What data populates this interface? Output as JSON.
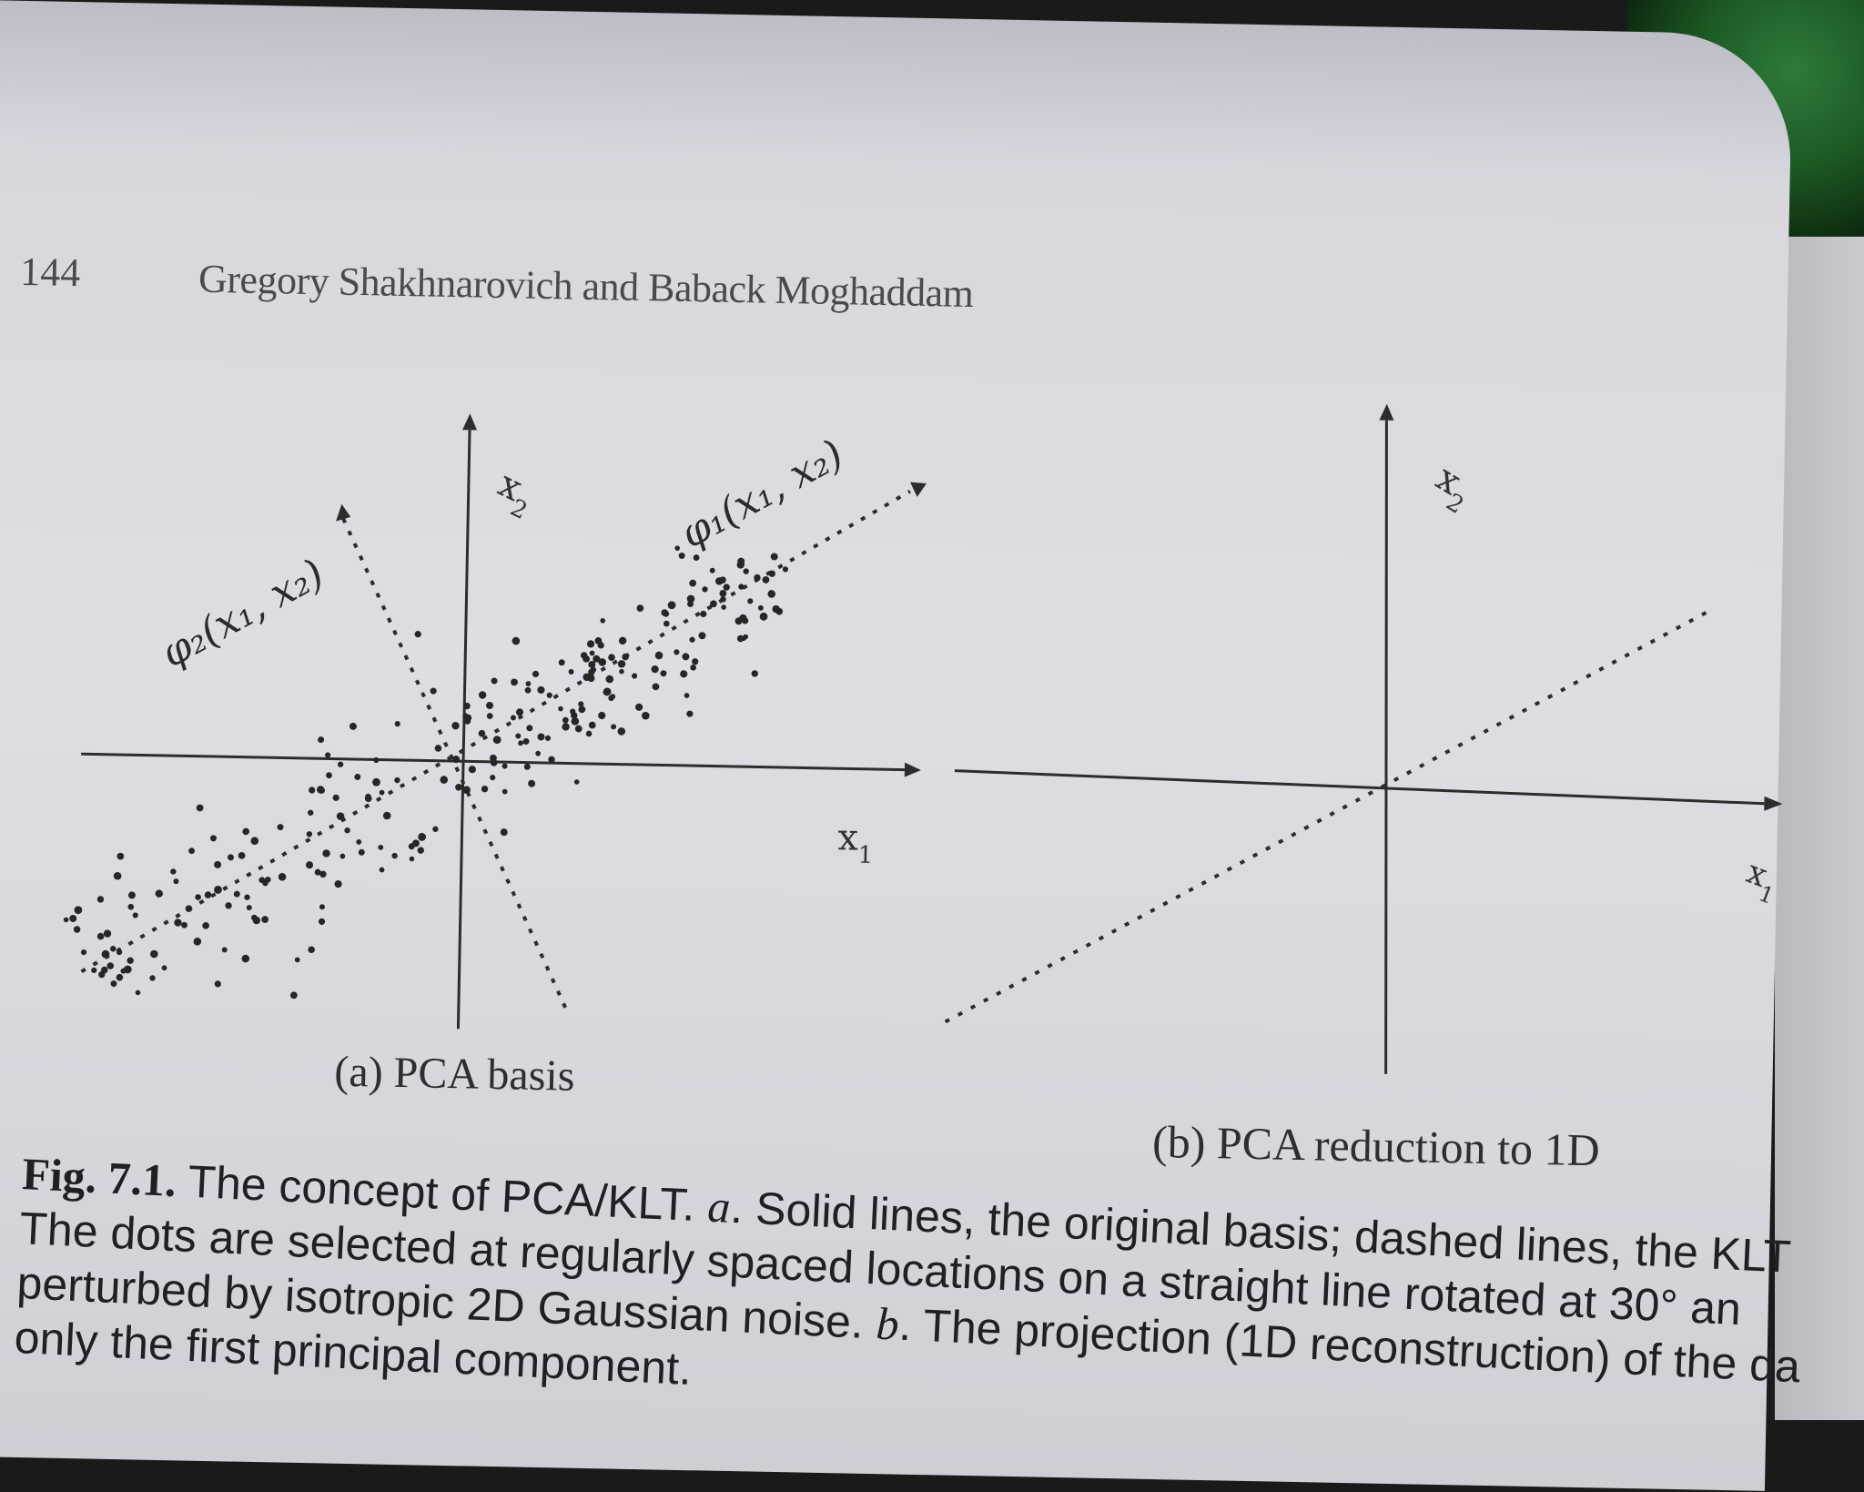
{
  "header": {
    "page_number": "144",
    "running_head": "Gregory Shakhnarovich and Baback Moghaddam"
  },
  "figure": {
    "panel_a": {
      "caption": "(a) PCA basis",
      "x_axis_label": "x",
      "x_axis_sub": "1",
      "y_axis_label": "x",
      "y_axis_sub": "2",
      "phi1_annotation": "φ₁(x₁, x₂)",
      "phi2_annotation": "φ₂(x₁, x₂)"
    },
    "panel_b": {
      "caption": "(b) PCA reduction to 1D",
      "x_axis_label": "x",
      "x_axis_sub": "1",
      "y_axis_label": "x",
      "y_axis_sub": "2"
    }
  },
  "caption": {
    "label": "Fig. 7.1.",
    "line1_text": " The concept of PCA/KLT. ",
    "line1_a": "a",
    "line1_rest": ". Solid lines, the original basis; dashed lines, the KLT",
    "line2": "The dots are selected at regularly spaced locations on a straight line rotated at 30° an",
    "line3_a": "perturbed by isotropic 2D Gaussian noise. ",
    "line3_b": "b",
    "line3_rest": ". The projection (1D reconstruction) of the da",
    "line4": "only the first principal component."
  }
}
